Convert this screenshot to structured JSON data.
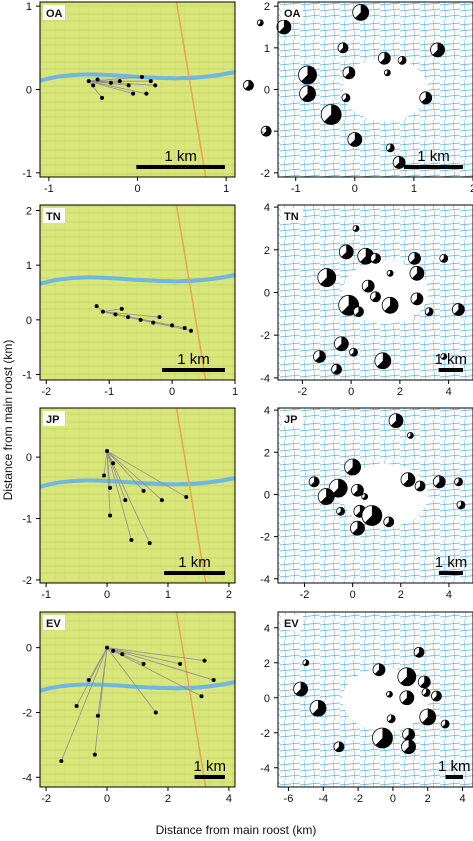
{
  "figure": {
    "xlabel": "Distance from main roost (km)",
    "ylabel": "Distance from main roost (km)"
  },
  "colors": {
    "map_bg": "#d9e67a",
    "water": "#6fb6e0",
    "track": "#8f8f8f",
    "point": "#000000",
    "road": "#e8a54d",
    "blue_map": "#5aaedf"
  },
  "chart_data": [
    {
      "type": "scatter",
      "panel": "map",
      "site": "OA",
      "xlim": [
        -1.1,
        1.1
      ],
      "ylim": [
        -1.05,
        1.05
      ],
      "xticks": [
        -1,
        0,
        1
      ],
      "yticks": [
        -1,
        0,
        1
      ],
      "scale_bar": "1 km",
      "scale_km": 1,
      "points": [
        [
          -0.55,
          0.1
        ],
        [
          -0.5,
          0.05
        ],
        [
          -0.45,
          0.12
        ],
        [
          -0.3,
          0.08
        ],
        [
          -0.2,
          0.1
        ],
        [
          -0.1,
          0.05
        ],
        [
          0.05,
          0.15
        ],
        [
          0.15,
          0.1
        ],
        [
          -0.05,
          -0.05
        ],
        [
          -0.4,
          -0.1
        ],
        [
          0.1,
          -0.05
        ],
        [
          0.2,
          0.05
        ]
      ]
    },
    {
      "type": "scatter",
      "panel": "distribution",
      "site": "OA",
      "xlim": [
        -1.3,
        2.0
      ],
      "ylim": [
        -2.1,
        2.1
      ],
      "xticks": [
        -1,
        0,
        1,
        2
      ],
      "yticks": [
        -2,
        -1,
        0,
        1,
        2
      ],
      "scale_bar": "1 km",
      "scale_km": 1,
      "points": [
        [
          -1.6,
          1.6
        ],
        [
          -1.2,
          1.5
        ],
        [
          0.1,
          1.85
        ],
        [
          -0.2,
          1.0
        ],
        [
          0.5,
          0.75
        ],
        [
          0.8,
          0.7
        ],
        [
          -0.8,
          0.35
        ],
        [
          -0.1,
          0.4
        ],
        [
          0.55,
          0.4
        ],
        [
          1.4,
          0.95
        ],
        [
          -1.8,
          0.1
        ],
        [
          -0.8,
          -0.1
        ],
        [
          -0.15,
          -0.2
        ],
        [
          1.2,
          -0.2
        ],
        [
          -0.4,
          -0.6
        ],
        [
          -1.5,
          -1.0
        ],
        [
          0.0,
          -1.2
        ],
        [
          0.6,
          -1.4
        ],
        [
          0.75,
          -1.75
        ]
      ]
    },
    {
      "type": "scatter",
      "panel": "map",
      "site": "TN",
      "xlim": [
        -2.1,
        1.0
      ],
      "ylim": [
        -1.1,
        2.1
      ],
      "xticks": [
        -2,
        -1,
        0,
        1
      ],
      "yticks": [
        -1,
        0,
        1,
        2
      ],
      "scale_bar": "1 km",
      "scale_km": 1,
      "points": [
        [
          -1.1,
          0.15
        ],
        [
          -0.9,
          0.1
        ],
        [
          -0.7,
          0.05
        ],
        [
          -0.5,
          0.0
        ],
        [
          -0.3,
          -0.05
        ],
        [
          -0.2,
          0.05
        ],
        [
          0.0,
          -0.1
        ],
        [
          0.2,
          -0.15
        ],
        [
          -1.2,
          0.25
        ],
        [
          -0.8,
          0.2
        ],
        [
          0.3,
          -0.2
        ]
      ]
    },
    {
      "type": "scatter",
      "panel": "distribution",
      "site": "TN",
      "xlim": [
        -3.0,
        5.0
      ],
      "ylim": [
        -4.1,
        4.1
      ],
      "xticks": [
        -2,
        0,
        2,
        4
      ],
      "yticks": [
        -4,
        -2,
        0,
        2,
        4
      ],
      "scale_bar": "1 km",
      "scale_km": 1,
      "points": [
        [
          0.2,
          3.0
        ],
        [
          -0.2,
          1.9
        ],
        [
          0.6,
          1.7
        ],
        [
          1.0,
          1.6
        ],
        [
          2.6,
          1.6
        ],
        [
          3.8,
          1.6
        ],
        [
          -1.0,
          0.7
        ],
        [
          0.7,
          0.3
        ],
        [
          1.6,
          0.9
        ],
        [
          2.7,
          0.9
        ],
        [
          1.0,
          -0.2
        ],
        [
          1.6,
          -0.6
        ],
        [
          3.2,
          -0.9
        ],
        [
          4.4,
          -0.8
        ],
        [
          -0.1,
          -0.6
        ],
        [
          0.3,
          -0.9
        ],
        [
          -0.4,
          -2.4
        ],
        [
          0.1,
          -2.8
        ],
        [
          -1.3,
          -3.0
        ],
        [
          -0.6,
          -3.6
        ],
        [
          1.3,
          -3.2
        ],
        [
          3.8,
          -3.0
        ],
        [
          2.7,
          -0.3
        ]
      ]
    },
    {
      "type": "scatter",
      "panel": "map",
      "site": "JP",
      "xlim": [
        -1.1,
        2.1
      ],
      "ylim": [
        -2.05,
        0.8
      ],
      "xticks": [
        -1,
        0,
        1,
        2
      ],
      "yticks": [
        -2,
        -1,
        0
      ],
      "scale_bar": "1 km",
      "scale_km": 1,
      "points": [
        [
          0.0,
          0.1
        ],
        [
          0.1,
          -0.1
        ],
        [
          0.05,
          -0.5
        ],
        [
          0.3,
          -0.7
        ],
        [
          0.6,
          -0.55
        ],
        [
          1.3,
          -0.65
        ],
        [
          0.9,
          -0.7
        ],
        [
          0.05,
          -0.95
        ],
        [
          0.4,
          -1.35
        ],
        [
          0.7,
          -1.4
        ],
        [
          -0.05,
          -0.3
        ]
      ]
    },
    {
      "type": "scatter",
      "panel": "distribution",
      "site": "JP",
      "xlim": [
        -3.1,
        5.0
      ],
      "ylim": [
        -4.2,
        4.1
      ],
      "xticks": [
        -2,
        0,
        2,
        4
      ],
      "yticks": [
        -4,
        -2,
        0,
        2,
        4
      ],
      "scale_bar": "1 km",
      "scale_km": 1,
      "points": [
        [
          2.4,
          2.8
        ],
        [
          1.8,
          3.5
        ],
        [
          0.0,
          1.3
        ],
        [
          -1.6,
          0.6
        ],
        [
          3.6,
          0.6
        ],
        [
          4.4,
          0.6
        ],
        [
          -0.6,
          0.3
        ],
        [
          0.2,
          0.2
        ],
        [
          0.5,
          -0.1
        ],
        [
          2.3,
          0.7
        ],
        [
          2.8,
          0.4
        ],
        [
          -1.1,
          -0.1
        ],
        [
          -0.5,
          -0.8
        ],
        [
          0.3,
          -0.8
        ],
        [
          0.8,
          -1.0
        ],
        [
          1.5,
          -1.3
        ],
        [
          0.2,
          -1.6
        ],
        [
          4.5,
          -0.5
        ]
      ]
    },
    {
      "type": "scatter",
      "panel": "map",
      "site": "EV",
      "xlim": [
        -2.2,
        4.2
      ],
      "ylim": [
        -4.3,
        1.1
      ],
      "xticks": [
        -2,
        0,
        2,
        4
      ],
      "yticks": [
        -4,
        -2,
        0
      ],
      "scale_bar": "1 km",
      "scale_km": 1,
      "points": [
        [
          0.0,
          0.0
        ],
        [
          0.2,
          -0.1
        ],
        [
          0.5,
          -0.2
        ],
        [
          1.2,
          -0.5
        ],
        [
          2.4,
          -0.5
        ],
        [
          3.2,
          -0.4
        ],
        [
          3.5,
          -1.0
        ],
        [
          3.1,
          -1.5
        ],
        [
          1.6,
          -2.0
        ],
        [
          -0.3,
          -2.1
        ],
        [
          -1.0,
          -1.8
        ],
        [
          -0.6,
          -1.0
        ],
        [
          -0.4,
          -3.3
        ],
        [
          -1.5,
          -3.5
        ]
      ]
    },
    {
      "type": "scatter",
      "panel": "distribution",
      "site": "EV",
      "xlim": [
        -6.6,
        4.6
      ],
      "ylim": [
        -5.1,
        4.9
      ],
      "xticks": [
        -6,
        -4,
        -2,
        0,
        2,
        4
      ],
      "yticks": [
        -4,
        -2,
        0,
        2,
        4
      ],
      "scale_bar": "1 km",
      "scale_km": 1,
      "points": [
        [
          -5.0,
          2.0
        ],
        [
          -5.3,
          0.5
        ],
        [
          -4.3,
          -0.6
        ],
        [
          1.5,
          2.6
        ],
        [
          1.8,
          0.9
        ],
        [
          1.9,
          0.3
        ],
        [
          0.8,
          1.2
        ],
        [
          -0.8,
          1.6
        ],
        [
          -0.2,
          0.2
        ],
        [
          0.8,
          0.0
        ],
        [
          2.5,
          0.1
        ],
        [
          2.0,
          -1.1
        ],
        [
          3.0,
          -1.5
        ],
        [
          0.9,
          -2.1
        ],
        [
          -0.6,
          -2.3
        ],
        [
          -3.1,
          -2.8
        ],
        [
          0.9,
          -2.8
        ],
        [
          -0.1,
          -1.2
        ]
      ]
    }
  ]
}
